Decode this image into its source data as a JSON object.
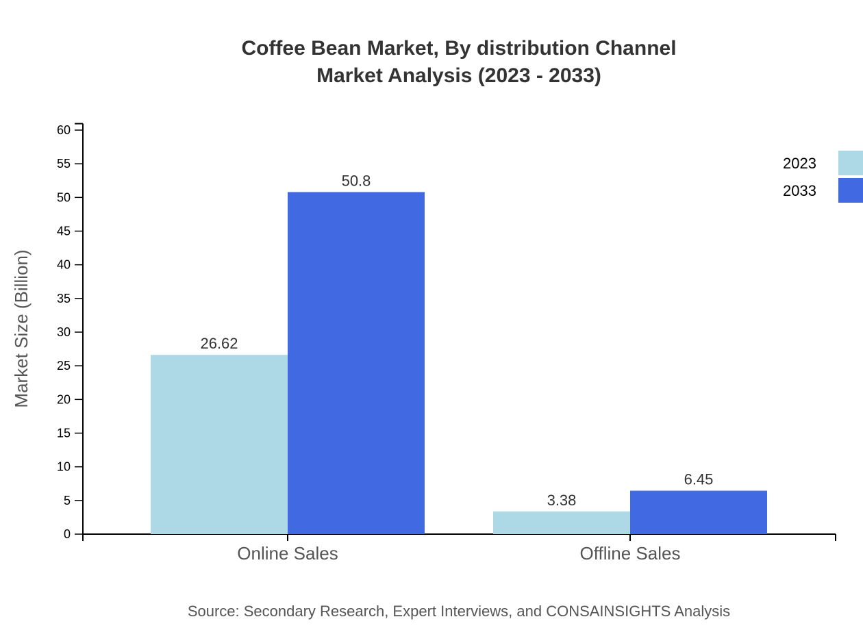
{
  "chart_data": {
    "type": "bar",
    "title_lines": [
      "Coffee Bean Market, By distribution Channel",
      "Market Analysis (2023 - 2033)"
    ],
    "xlabel": "",
    "ylabel": "Market Size (Billion)",
    "categories": [
      "Online Sales",
      "Offline Sales"
    ],
    "series": [
      {
        "name": "2023",
        "values": [
          26.62,
          3.38
        ],
        "labels": [
          "26.62",
          "3.38"
        ],
        "color": "#add8e6"
      },
      {
        "name": "2033",
        "values": [
          50.8,
          6.45
        ],
        "labels": [
          "50.8",
          "6.45"
        ],
        "color": "#4169e1"
      }
    ],
    "ylim": [
      0,
      60.96
    ],
    "yticks": [
      "0",
      "5",
      "10",
      "15",
      "20",
      "25",
      "30",
      "35",
      "40",
      "45",
      "50",
      "55",
      "60"
    ],
    "grid": false,
    "legend_position": "top-right",
    "source": "Source: Secondary Research, Expert Interviews, and CONSAINSIGHTS Analysis"
  }
}
